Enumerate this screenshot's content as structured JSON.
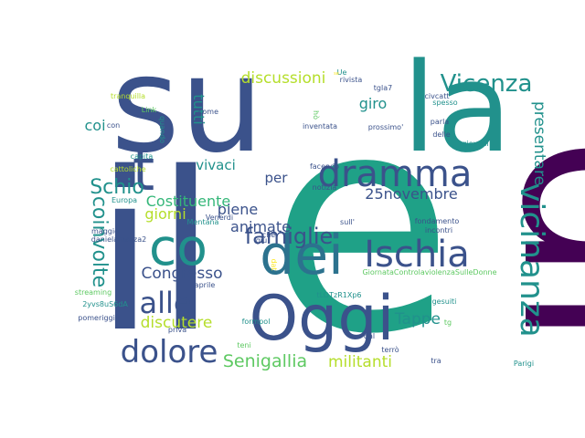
{
  "chart_data": {
    "type": "wordcloud",
    "palette": "viridis",
    "background": "#ffffff",
    "words": [
      {
        "text": "e",
        "color": "#1fa187"
      },
      {
        "text": "su",
        "color": "#3b528b"
      },
      {
        "text": "il",
        "color": "#3b528b"
      },
      {
        "text": "di",
        "color": "#440154"
      },
      {
        "text": "la",
        "color": "#21918c"
      },
      {
        "text": "Oggi",
        "color": "#3b528b"
      },
      {
        "text": "dei",
        "color": "#2c728e"
      },
      {
        "text": "co",
        "color": "#21918c"
      },
      {
        "text": "t",
        "color": "#3b528b"
      },
      {
        "text": "dramma",
        "color": "#3b528b"
      },
      {
        "text": "Ischia",
        "color": "#3b528b"
      },
      {
        "text": "vicinanza",
        "color": "#21918c"
      },
      {
        "text": "alle",
        "color": "#3b528b"
      },
      {
        "text": "dolore",
        "color": "#3b528b"
      },
      {
        "text": "Vicenza",
        "color": "#21918c"
      },
      {
        "text": "famiglie",
        "color": "#3b528b"
      },
      {
        "text": "coinvolte",
        "color": "#21918c"
      },
      {
        "text": "Schio",
        "color": "#21918c"
      },
      {
        "text": "presentare",
        "color": "#21918c"
      },
      {
        "text": "Senigallia",
        "color": "#5ec962"
      },
      {
        "text": "militanti",
        "color": "#b5de2b"
      },
      {
        "text": "discussioni",
        "color": "#b5de2b"
      },
      {
        "text": "Congresso",
        "color": "#3b528b"
      },
      {
        "text": "discutere",
        "color": "#b5de2b"
      },
      {
        "text": "Tappe",
        "color": "#21918c"
      },
      {
        "text": "animate",
        "color": "#3b528b"
      },
      {
        "text": "25novembre",
        "color": "#3b528b"
      },
      {
        "text": "Costituente",
        "color": "#35b779"
      },
      {
        "text": "giorni",
        "color": "#b5de2b"
      },
      {
        "text": "vivaci",
        "color": "#21918c"
      },
      {
        "text": "tutti",
        "color": "#21918c"
      },
      {
        "text": "giro",
        "color": "#21918c"
      },
      {
        "text": "coi",
        "color": "#21918c"
      },
      {
        "text": "piene",
        "color": "#3b528b"
      },
      {
        "text": "per",
        "color": "#3b528b"
      },
      {
        "text": "rivista",
        "color": "#3b528b"
      },
      {
        "text": "tgla7",
        "color": "#3b528b"
      },
      {
        "text": "civcatt",
        "color": "#3b528b"
      },
      {
        "text": "spesso",
        "color": "#21918c"
      },
      {
        "text": "Ue",
        "color": "#21918c"
      },
      {
        "text": "tranquilla",
        "color": "#b5de2b"
      },
      {
        "text": "Link",
        "color": "#5ec962"
      },
      {
        "text": "con",
        "color": "#3b528b"
      },
      {
        "text": "come",
        "color": "#3b528b"
      },
      {
        "text": "quando",
        "color": "#21918c"
      },
      {
        "text": "hò",
        "color": "#5ec962"
      },
      {
        "text": "inventata",
        "color": "#3b528b"
      },
      {
        "text": "prossimo'",
        "color": "#3b528b"
      },
      {
        "text": "parla",
        "color": "#3b528b"
      },
      {
        "text": "delle",
        "color": "#3b528b"
      },
      {
        "text": "giovani",
        "color": "#21918c"
      },
      {
        "text": "capita",
        "color": "#21918c"
      },
      {
        "text": "cattoliche",
        "color": "#b5de2b"
      },
      {
        "text": "facendo",
        "color": "#3b528b"
      },
      {
        "text": "notizia",
        "color": "#3b528b"
      },
      {
        "text": "Europa",
        "color": "#21918c"
      },
      {
        "text": "Venerdi",
        "color": "#3b528b"
      },
      {
        "text": "Mentana",
        "color": "#21918c"
      },
      {
        "text": "maggio",
        "color": "#3b528b"
      },
      {
        "text": "danielamazza2",
        "color": "#3b528b"
      },
      {
        "text": "che",
        "color": "#3b528b"
      },
      {
        "text": "sull'",
        "color": "#3b528b"
      },
      {
        "text": "giù",
        "color": "#3b528b"
      },
      {
        "text": "fondamento",
        "color": "#3b528b"
      },
      {
        "text": "incontri",
        "color": "#3b528b"
      },
      {
        "text": "GiornataControlaviolenzaSulleDonne",
        "color": "#5ec962"
      },
      {
        "text": "aprile",
        "color": "#3b528b"
      },
      {
        "text": "streaming",
        "color": "#5ec962"
      },
      {
        "text": "2yvs8uS6dA",
        "color": "#21918c"
      },
      {
        "text": "pomeriggio",
        "color": "#3b528b"
      },
      {
        "text": "tLOTzR1Xp6",
        "color": "#21918c"
      },
      {
        "text": "gesuiti",
        "color": "#21918c"
      },
      {
        "text": "tg",
        "color": "#5ec962"
      },
      {
        "text": "priva",
        "color": "#3b528b"
      },
      {
        "text": "formpol",
        "color": "#21918c"
      },
      {
        "text": "teni",
        "color": "#5ec962"
      },
      {
        "text": "terrò",
        "color": "#3b528b"
      },
      {
        "text": "tra",
        "color": "#3b528b"
      },
      {
        "text": "Parigi",
        "color": "#21918c"
      },
      {
        "text": "dal",
        "color": "#3b528b"
      },
      {
        "text": "dat",
        "color": "#fde725"
      },
      {
        "text": "se",
        "color": "#fde725"
      }
    ]
  }
}
